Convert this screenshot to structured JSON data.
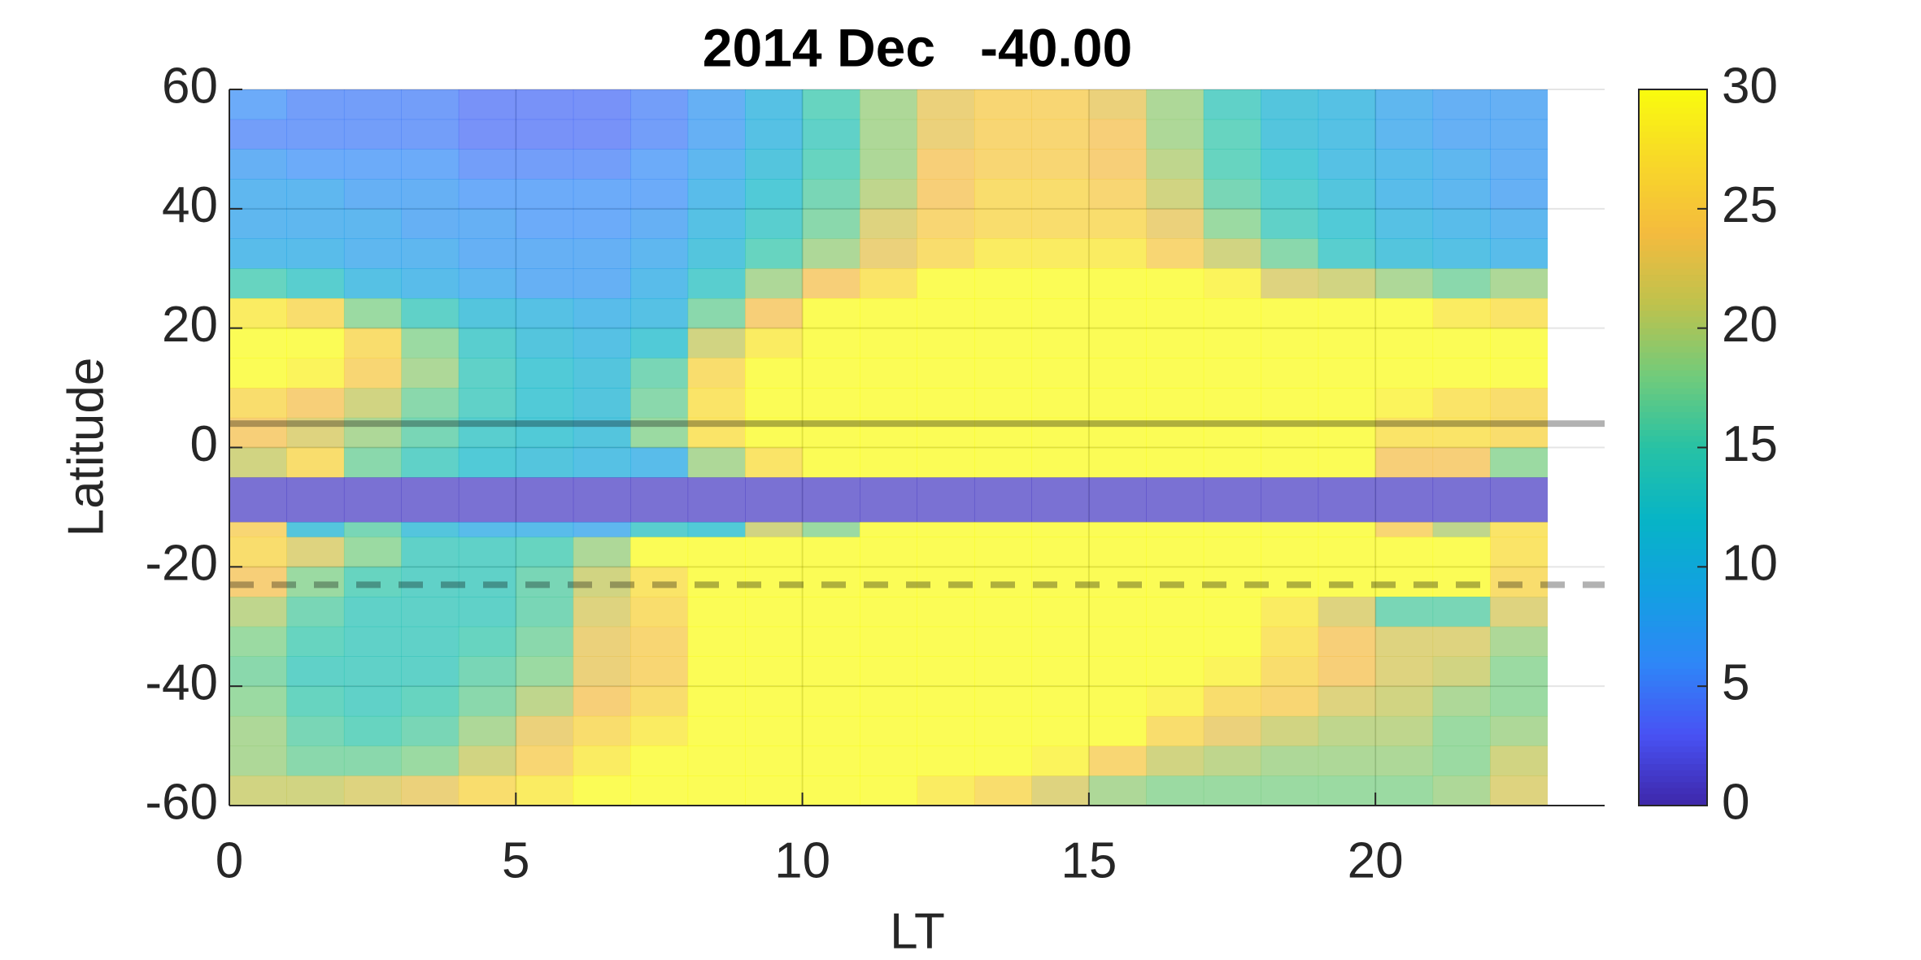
{
  "chart_data": {
    "type": "heatmap",
    "title": "2014 Dec   -40.00",
    "xlabel": "LT",
    "ylabel": "Latitude",
    "xlim": [
      0,
      24
    ],
    "xticks": [
      0,
      5,
      10,
      15,
      20
    ],
    "ylim": [
      -60,
      60
    ],
    "yticks": [
      -60,
      -40,
      -20,
      0,
      20,
      40,
      60
    ],
    "colormap": "parula",
    "clim": [
      0,
      30
    ],
    "cticks": [
      0,
      5,
      10,
      15,
      20,
      25,
      30
    ],
    "grid": true,
    "x_edges": [
      0,
      1,
      2,
      3,
      4,
      5,
      6,
      7,
      8,
      9,
      10,
      11,
      12,
      13,
      14,
      15,
      16,
      17,
      18,
      19,
      20,
      21,
      22,
      23
    ],
    "y_edges": [
      60,
      55,
      50,
      45,
      40,
      35,
      30,
      25,
      20,
      15,
      10,
      5,
      0,
      -5,
      -12.5,
      -15,
      -20,
      -25,
      -30,
      -35,
      -40,
      -45,
      -50,
      -55,
      -60
    ],
    "z": [
      [
        6,
        5,
        5,
        5,
        4,
        4,
        4,
        5,
        7,
        10,
        15,
        19,
        23,
        25,
        25,
        23,
        19,
        14,
        11,
        10,
        8,
        7,
        7
      ],
      [
        5,
        5,
        5,
        5,
        4,
        4,
        4,
        5,
        7,
        10,
        14,
        19,
        23,
        25,
        25,
        24,
        19,
        15,
        11,
        10,
        8,
        7,
        7
      ],
      [
        7,
        6,
        6,
        6,
        5,
        5,
        5,
        6,
        8,
        11,
        15,
        19,
        24,
        25,
        25,
        24,
        20,
        15,
        12,
        10,
        9,
        8,
        7
      ],
      [
        8,
        8,
        7,
        7,
        6,
        6,
        6,
        6,
        9,
        12,
        16,
        20,
        24,
        26,
        26,
        25,
        21,
        16,
        13,
        11,
        9,
        8,
        7
      ],
      [
        8,
        8,
        8,
        7,
        7,
        6,
        6,
        7,
        10,
        13,
        17,
        22,
        25,
        26,
        26,
        26,
        23,
        18,
        14,
        12,
        10,
        9,
        8
      ],
      [
        9,
        9,
        8,
        8,
        7,
        7,
        7,
        8,
        11,
        15,
        19,
        23,
        26,
        28,
        28,
        28,
        25,
        21,
        17,
        13,
        11,
        10,
        9
      ],
      [
        15,
        13,
        10,
        9,
        8,
        7,
        7,
        9,
        13,
        19,
        24,
        27,
        30,
        30,
        30,
        30,
        30,
        29,
        22,
        21,
        19,
        17,
        19
      ],
      [
        28,
        26,
        18,
        14,
        11,
        10,
        9,
        10,
        17,
        24,
        30,
        30,
        30,
        30,
        30,
        30,
        30,
        30,
        30,
        30,
        30,
        28,
        27
      ],
      [
        30,
        30,
        26,
        18,
        13,
        11,
        10,
        12,
        21,
        28,
        30,
        30,
        30,
        30,
        30,
        30,
        30,
        30,
        30,
        30,
        30,
        30,
        30
      ],
      [
        30,
        29,
        25,
        19,
        14,
        12,
        11,
        16,
        26,
        30,
        30,
        30,
        30,
        30,
        30,
        30,
        30,
        30,
        30,
        30,
        30,
        30,
        30
      ],
      [
        26,
        24,
        21,
        17,
        14,
        12,
        11,
        17,
        27,
        30,
        30,
        30,
        30,
        30,
        30,
        30,
        30,
        30,
        30,
        30,
        29,
        27,
        26
      ],
      [
        24,
        22,
        19,
        16,
        13,
        12,
        11,
        18,
        27,
        30,
        30,
        30,
        30,
        30,
        30,
        30,
        30,
        30,
        30,
        30,
        27,
        27,
        26
      ],
      [
        21,
        26,
        17,
        14,
        12,
        11,
        10,
        9,
        19,
        27,
        30,
        30,
        30,
        30,
        30,
        30,
        30,
        30,
        30,
        30,
        24,
        24,
        18
      ],
      [
        1,
        1,
        1,
        1,
        1,
        1,
        1,
        1,
        1,
        1,
        1,
        1,
        1,
        1,
        1,
        1,
        1,
        1,
        1,
        1,
        1,
        1,
        1
      ],
      [
        25,
        11,
        16,
        11,
        9,
        9,
        8,
        13,
        12,
        21,
        18,
        30,
        30,
        30,
        30,
        30,
        30,
        30,
        30,
        30,
        25,
        20,
        27
      ],
      [
        26,
        22,
        18,
        14,
        14,
        15,
        19,
        30,
        30,
        30,
        30,
        30,
        30,
        30,
        30,
        30,
        30,
        30,
        30,
        30,
        30,
        30,
        27
      ],
      [
        24,
        18,
        15,
        14,
        14,
        16,
        21,
        27,
        30,
        30,
        30,
        30,
        30,
        30,
        30,
        30,
        30,
        30,
        30,
        30,
        30,
        30,
        26
      ],
      [
        20,
        16,
        14,
        14,
        14,
        16,
        22,
        26,
        30,
        30,
        30,
        30,
        30,
        30,
        30,
        30,
        30,
        30,
        28,
        22,
        16,
        16,
        22
      ],
      [
        18,
        15,
        14,
        14,
        15,
        17,
        23,
        25,
        30,
        30,
        30,
        30,
        30,
        30,
        30,
        30,
        30,
        30,
        27,
        24,
        22,
        22,
        19
      ],
      [
        17,
        14,
        14,
        14,
        16,
        18,
        23,
        25,
        30,
        30,
        30,
        30,
        30,
        30,
        30,
        30,
        30,
        29,
        26,
        24,
        22,
        21,
        18
      ],
      [
        18,
        15,
        14,
        15,
        17,
        20,
        24,
        26,
        30,
        30,
        30,
        30,
        30,
        30,
        30,
        30,
        29,
        26,
        25,
        22,
        21,
        19,
        18
      ],
      [
        19,
        16,
        15,
        16,
        19,
        23,
        26,
        28,
        30,
        30,
        30,
        30,
        30,
        30,
        30,
        30,
        26,
        23,
        21,
        20,
        20,
        18,
        19
      ],
      [
        19,
        17,
        17,
        18,
        21,
        25,
        28,
        30,
        30,
        30,
        30,
        30,
        30,
        30,
        29,
        25,
        21,
        20,
        19,
        19,
        19,
        18,
        21
      ],
      [
        21,
        21,
        22,
        23,
        26,
        28,
        30,
        30,
        30,
        30,
        30,
        30,
        28,
        26,
        22,
        19,
        18,
        18,
        18,
        18,
        18,
        19,
        22
      ]
    ],
    "hlines": [
      {
        "y": 4,
        "style": "solid"
      },
      {
        "y": -23,
        "style": "dashed"
      }
    ]
  }
}
